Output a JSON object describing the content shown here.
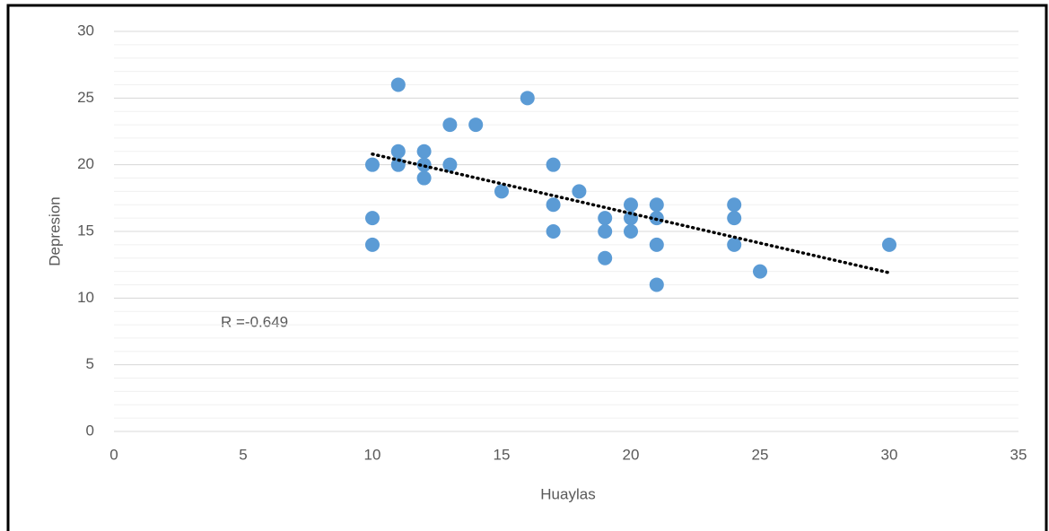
{
  "chart_data": {
    "type": "scatter",
    "x_label": "Huaylas",
    "y_label": "Depresion",
    "annotation": "R =-0.649",
    "x": [
      10,
      10,
      10,
      11,
      11,
      11,
      12,
      12,
      12,
      13,
      13,
      14,
      15,
      16,
      17,
      17,
      17,
      18,
      19,
      19,
      19,
      20,
      20,
      20,
      21,
      21,
      21,
      21,
      24,
      24,
      24,
      25,
      30
    ],
    "values": [
      20,
      16,
      14,
      26,
      21,
      20,
      21,
      20,
      19,
      23,
      20,
      23,
      18,
      25,
      20,
      17,
      15,
      18,
      16,
      15,
      13,
      17,
      16,
      15,
      17,
      16,
      14,
      11,
      17,
      16,
      14,
      12,
      14
    ],
    "color": "#5b9bd5",
    "trendline": {
      "x": [
        10,
        30
      ],
      "y": [
        20.8,
        11.9
      ],
      "color": "#000000"
    },
    "xlim": [
      0,
      35
    ],
    "xticks": [
      0,
      5,
      10,
      15,
      20,
      25,
      30,
      35
    ],
    "ylim": [
      0,
      30
    ],
    "yticks": [
      0,
      5,
      10,
      15,
      20,
      25,
      30
    ],
    "grid": true,
    "minor_grid_step": 1
  }
}
